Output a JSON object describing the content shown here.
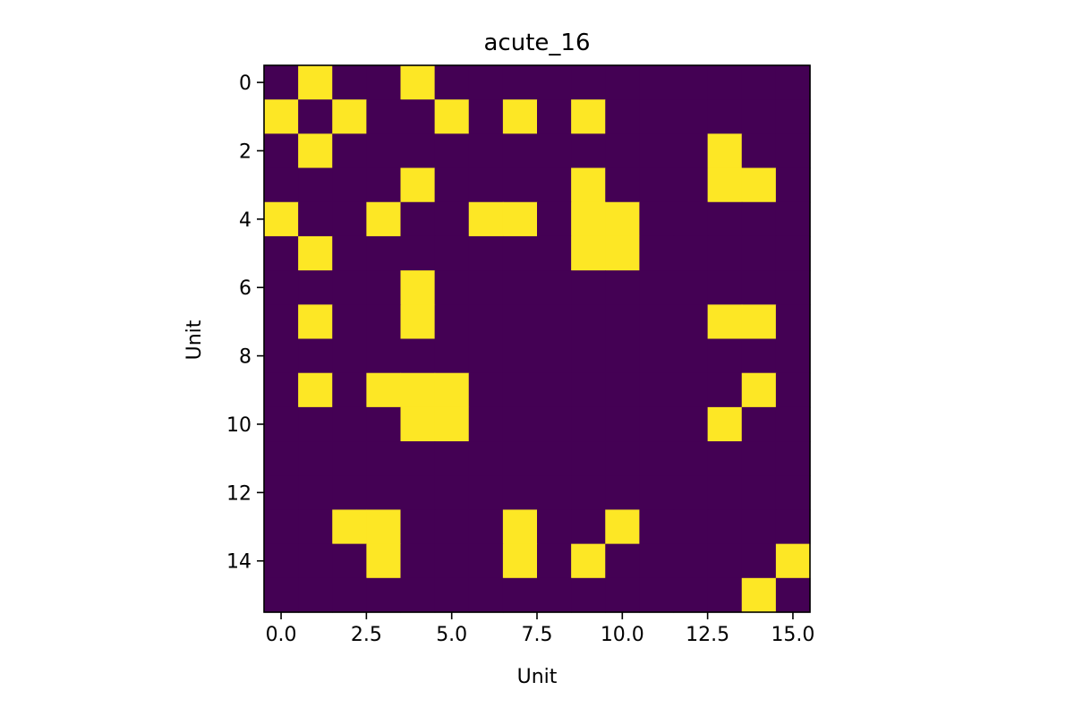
{
  "chart_data": {
    "type": "heatmap",
    "title": "acute_16",
    "xlabel": "Unit",
    "ylabel": "Unit",
    "rows": 16,
    "cols": 16,
    "colors": {
      "off": "#440154",
      "on": "#fde725"
    },
    "xlim": [
      -0.5,
      15.5
    ],
    "ylim": [
      15.5,
      -0.5
    ],
    "x_ticks": [
      0.0,
      2.5,
      5.0,
      7.5,
      10.0,
      12.5,
      15.0
    ],
    "x_tick_labels": [
      "0.0",
      "2.5",
      "5.0",
      "7.5",
      "10.0",
      "12.5",
      "15.0"
    ],
    "y_ticks": [
      0,
      2,
      4,
      6,
      8,
      10,
      12,
      14
    ],
    "y_tick_labels": [
      "0",
      "2",
      "4",
      "6",
      "8",
      "10",
      "12",
      "14"
    ],
    "matrix": [
      [
        0,
        1,
        0,
        0,
        1,
        0,
        0,
        0,
        0,
        0,
        0,
        0,
        0,
        0,
        0,
        0
      ],
      [
        1,
        0,
        1,
        0,
        0,
        1,
        0,
        1,
        0,
        1,
        0,
        0,
        0,
        0,
        0,
        0
      ],
      [
        0,
        1,
        0,
        0,
        0,
        0,
        0,
        0,
        0,
        0,
        0,
        0,
        0,
        1,
        0,
        0
      ],
      [
        0,
        0,
        0,
        0,
        1,
        0,
        0,
        0,
        0,
        1,
        0,
        0,
        0,
        1,
        1,
        0
      ],
      [
        1,
        0,
        0,
        1,
        0,
        0,
        1,
        1,
        0,
        1,
        1,
        0,
        0,
        0,
        0,
        0
      ],
      [
        0,
        1,
        0,
        0,
        0,
        0,
        0,
        0,
        0,
        1,
        1,
        0,
        0,
        0,
        0,
        0
      ],
      [
        0,
        0,
        0,
        0,
        1,
        0,
        0,
        0,
        0,
        0,
        0,
        0,
        0,
        0,
        0,
        0
      ],
      [
        0,
        1,
        0,
        0,
        1,
        0,
        0,
        0,
        0,
        0,
        0,
        0,
        0,
        1,
        1,
        0
      ],
      [
        0,
        0,
        0,
        0,
        0,
        0,
        0,
        0,
        0,
        0,
        0,
        0,
        0,
        0,
        0,
        0
      ],
      [
        0,
        1,
        0,
        1,
        1,
        1,
        0,
        0,
        0,
        0,
        0,
        0,
        0,
        0,
        1,
        0
      ],
      [
        0,
        0,
        0,
        0,
        1,
        1,
        0,
        0,
        0,
        0,
        0,
        0,
        0,
        1,
        0,
        0
      ],
      [
        0,
        0,
        0,
        0,
        0,
        0,
        0,
        0,
        0,
        0,
        0,
        0,
        0,
        0,
        0,
        0
      ],
      [
        0,
        0,
        0,
        0,
        0,
        0,
        0,
        0,
        0,
        0,
        0,
        0,
        0,
        0,
        0,
        0
      ],
      [
        0,
        0,
        1,
        1,
        0,
        0,
        0,
        1,
        0,
        0,
        1,
        0,
        0,
        0,
        0,
        0
      ],
      [
        0,
        0,
        0,
        1,
        0,
        0,
        0,
        1,
        0,
        1,
        0,
        0,
        0,
        0,
        0,
        1
      ],
      [
        0,
        0,
        0,
        0,
        0,
        0,
        0,
        0,
        0,
        0,
        0,
        0,
        0,
        0,
        1,
        0
      ]
    ]
  }
}
